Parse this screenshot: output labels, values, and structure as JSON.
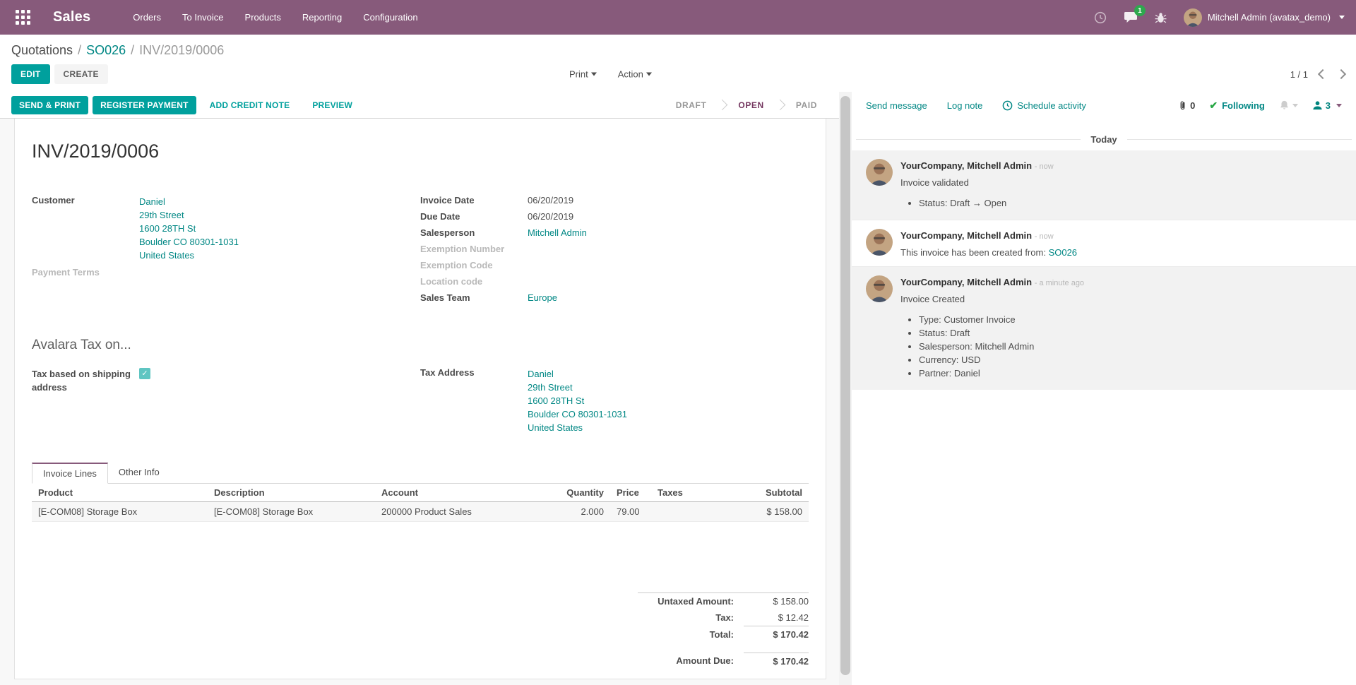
{
  "colors": {
    "brand_purple": "#875A7B",
    "accent_teal": "#00A09D",
    "link_teal": "#008784",
    "status_open_text": "#74365f",
    "badge_green": "#2ea84e"
  },
  "topbar": {
    "app": "Sales",
    "menus": [
      "Orders",
      "To Invoice",
      "Products",
      "Reporting",
      "Configuration"
    ],
    "message_badge": "1",
    "user": "Mitchell Admin (avatax_demo)"
  },
  "breadcrumb": {
    "items": [
      "Quotations",
      "SO026",
      "INV/2019/0006"
    ]
  },
  "actions": {
    "edit": "EDIT",
    "create": "CREATE",
    "print": "Print",
    "action": "Action",
    "pager": "1 / 1"
  },
  "statusbar": {
    "buttons": [
      {
        "label": "SEND & PRINT",
        "primary": true
      },
      {
        "label": "REGISTER PAYMENT",
        "primary": true
      },
      {
        "label": "ADD CREDIT NOTE",
        "primary": false
      },
      {
        "label": "PREVIEW",
        "primary": false
      }
    ],
    "states": [
      "DRAFT",
      "OPEN",
      "PAID"
    ],
    "active": "OPEN"
  },
  "invoice": {
    "number": "INV/2019/0006",
    "customer_label": "Customer",
    "customer_address": [
      "Daniel",
      "29th Street",
      "1600 28TH St",
      "Boulder CO 80301-1031",
      "United States"
    ],
    "payment_terms_label": "Payment Terms",
    "fields": [
      {
        "label": "Invoice Date",
        "value": "06/20/2019",
        "link": false
      },
      {
        "label": "Due Date",
        "value": "06/20/2019",
        "link": false
      },
      {
        "label": "Salesperson",
        "value": "Mitchell Admin",
        "link": true
      },
      {
        "label": "Exemption Number",
        "value": "",
        "link": false
      },
      {
        "label": "Exemption Code",
        "value": "",
        "link": false
      },
      {
        "label": "Location code",
        "value": "",
        "link": false
      },
      {
        "label": "Sales Team",
        "value": "Europe",
        "link": true
      }
    ],
    "avalara_title": "Avalara Tax on...",
    "tax_shipping_label": "Tax based on shipping address",
    "tax_shipping_checked": true,
    "tax_address_label": "Tax Address",
    "tax_address": [
      "Daniel",
      "29th Street",
      "1600 28TH St",
      "Boulder CO 80301-1031",
      "United States"
    ],
    "tabs": [
      {
        "label": "Invoice Lines",
        "active": true
      },
      {
        "label": "Other Info",
        "active": false
      }
    ],
    "table": {
      "headers": [
        "Product",
        "Description",
        "Account",
        "Quantity",
        "Price",
        "Taxes",
        "Subtotal"
      ],
      "rows": [
        [
          "[E-COM08] Storage Box",
          "[E-COM08] Storage Box",
          "200000 Product Sales",
          "2.000",
          "79.00",
          "",
          "$ 158.00"
        ]
      ]
    },
    "totals": {
      "untaxed_label": "Untaxed Amount:",
      "untaxed": "$ 158.00",
      "tax_label": "Tax:",
      "tax": "$ 12.42",
      "total_label": "Total:",
      "total": "$ 170.42",
      "due_label": "Amount Due:",
      "due": "$ 170.42"
    }
  },
  "chatter": {
    "send_message": "Send message",
    "log_note": "Log note",
    "schedule_activity": "Schedule activity",
    "attachments": "0",
    "following": "Following",
    "follower_count": "3",
    "divider": "Today",
    "messages": [
      {
        "author": "YourCompany, Mitchell Admin",
        "time": "- now",
        "body": "Invoice validated",
        "bullets": [
          "Status: Draft → Open"
        ],
        "highlight": true
      },
      {
        "author": "YourCompany, Mitchell Admin",
        "time": "- now",
        "body": "This invoice has been created from:",
        "body_link": "SO026",
        "highlight": false
      },
      {
        "author": "YourCompany, Mitchell Admin",
        "time": "- a minute ago",
        "body": "Invoice Created",
        "bullets": [
          "Type: Customer Invoice",
          "Status: Draft",
          "Salesperson: Mitchell Admin",
          "Currency: USD",
          "Partner: Daniel"
        ],
        "highlight": true
      }
    ]
  }
}
